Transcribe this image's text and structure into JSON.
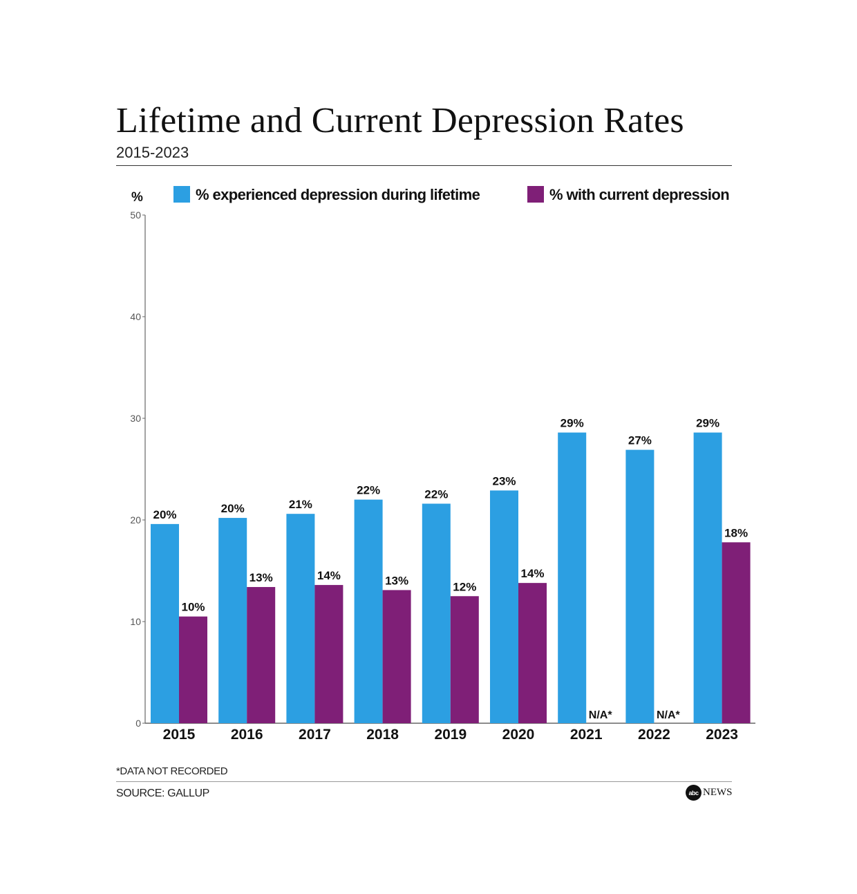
{
  "colors": {
    "lifetime": "#2c9fe2",
    "current": "#7f1f77",
    "axis": "#666666",
    "text": "#111111"
  },
  "chart_data": {
    "type": "bar",
    "title": "Lifetime and Current Depression Rates",
    "subtitle": "2015-2023",
    "ylabel": "%",
    "xlabel": "",
    "ylim": [
      0,
      50
    ],
    "yticks": [
      0,
      10,
      20,
      30,
      40,
      50
    ],
    "categories": [
      "2015",
      "2016",
      "2017",
      "2018",
      "2019",
      "2020",
      "2021",
      "2022",
      "2023"
    ],
    "series": [
      {
        "name": "% experienced depression during lifetime",
        "color": "#2c9fe2",
        "values": [
          19.6,
          20.2,
          20.6,
          22.0,
          21.6,
          22.9,
          28.6,
          26.9,
          28.6
        ],
        "labels": [
          "20%",
          "20%",
          "21%",
          "22%",
          "22%",
          "23%",
          "29%",
          "27%",
          "29%"
        ]
      },
      {
        "name": "% with current depression",
        "color": "#7f1f77",
        "values": [
          10.5,
          13.4,
          13.6,
          13.1,
          12.5,
          13.8,
          null,
          null,
          17.8
        ],
        "labels": [
          "10%",
          "13%",
          "14%",
          "13%",
          "12%",
          "14%",
          "N/A*",
          "N/A*",
          "18%"
        ]
      }
    ],
    "legend": "top",
    "grid": false
  },
  "footnote": "*DATA NOT RECORDED",
  "source": "SOURCE: GALLUP",
  "logo": {
    "mark": "abc",
    "text": "NEWS"
  }
}
